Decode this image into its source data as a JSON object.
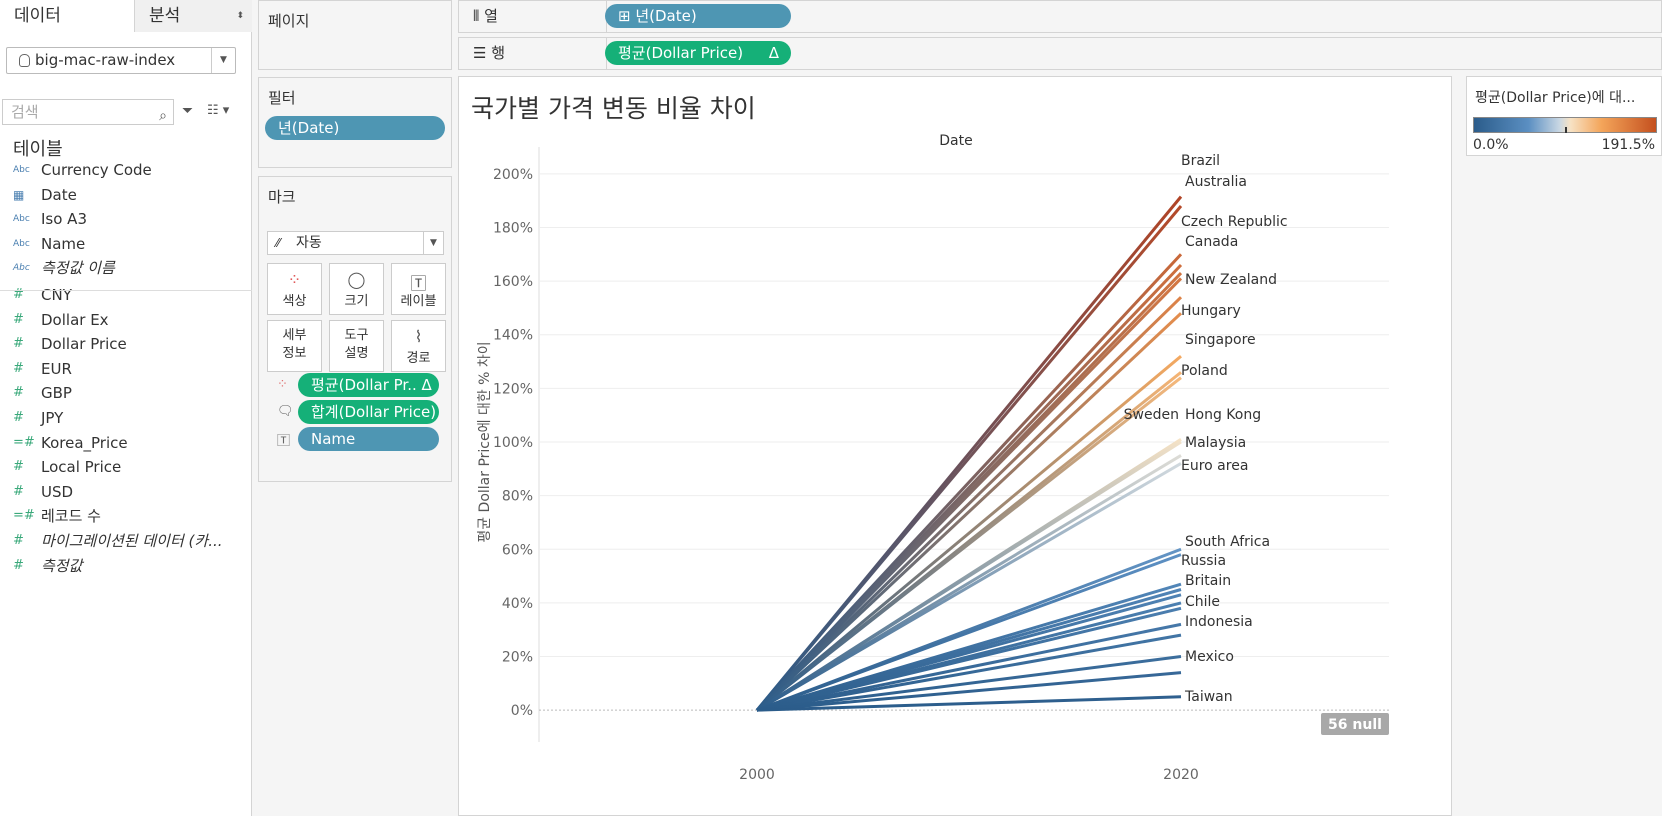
{
  "tabs": {
    "data": "데이터",
    "analysis": "분석"
  },
  "datasource": "big-mac-raw-index",
  "search_placeholder": "검색",
  "tables_heading": "테이블",
  "dimensions": [
    {
      "type": "Abc",
      "name": "Currency Code"
    },
    {
      "type": "date",
      "name": "Date"
    },
    {
      "type": "Abc",
      "name": "Iso A3"
    },
    {
      "type": "Abc",
      "name": "Name"
    },
    {
      "type": "Abc",
      "name": "측정값 이름"
    }
  ],
  "measures": [
    {
      "type": "#",
      "name": "CNY"
    },
    {
      "type": "#",
      "name": "Dollar Ex"
    },
    {
      "type": "#",
      "name": "Dollar Price"
    },
    {
      "type": "#",
      "name": "EUR"
    },
    {
      "type": "#",
      "name": "GBP"
    },
    {
      "type": "#",
      "name": "JPY"
    },
    {
      "type": "=#",
      "name": "Korea_Price"
    },
    {
      "type": "#",
      "name": "Local Price"
    },
    {
      "type": "#",
      "name": "USD"
    },
    {
      "type": "=#",
      "name": "레코드 수"
    },
    {
      "type": "#",
      "name": "마이그레이션된 데이터 (카..."
    },
    {
      "type": "#",
      "name": "측정값"
    }
  ],
  "pages": {
    "title": "페이지"
  },
  "filters": {
    "title": "필터",
    "pill": "년(Date)"
  },
  "marks": {
    "title": "마크",
    "type": "자동",
    "buttons": {
      "color": "색상",
      "size": "크기",
      "label": "레이블",
      "detail": "세부\n정보",
      "tooltip": "도구\n설명",
      "path": "경로"
    },
    "pills": [
      "평균(Dollar Pr.. Δ",
      "합계(Dollar Price)",
      "Name"
    ]
  },
  "columns": {
    "shelf": "열",
    "pill": "년(Date)"
  },
  "rows": {
    "shelf": "행",
    "pill": "평균(Dollar Price)",
    "delta": "Δ"
  },
  "viz": {
    "title": "국가별 가격 변동 비율 차이",
    "header": "Date",
    "null_badge": "56 null"
  },
  "legend": {
    "title": "평균(Dollar Price)에 대...",
    "min": "0.0%",
    "max": "191.5%"
  },
  "chart_data": {
    "type": "line",
    "title": "국가별 가격 변동 비율 차이",
    "xlabel": "Date",
    "ylabel": "평균 Dollar Price에 대한 % 차이",
    "x": [
      "2000",
      "2020"
    ],
    "yticks": [
      "0%",
      "20%",
      "40%",
      "60%",
      "80%",
      "100%",
      "120%",
      "140%",
      "160%",
      "180%",
      "200%"
    ],
    "ylim": [
      -10,
      210
    ],
    "series": [
      {
        "name": "Brazil",
        "values": [
          0,
          191.5
        ]
      },
      {
        "name": "Australia",
        "values": [
          0,
          188
        ]
      },
      {
        "name": "Czech Republic",
        "values": [
          0,
          170
        ]
      },
      {
        "name": "Canada",
        "values": [
          0,
          166
        ]
      },
      {
        "name": "",
        "values": [
          0,
          163
        ]
      },
      {
        "name": "",
        "values": [
          0,
          161
        ]
      },
      {
        "name": "New Zealand",
        "values": [
          0,
          154
        ]
      },
      {
        "name": "Hungary",
        "values": [
          0,
          148
        ]
      },
      {
        "name": "Singapore",
        "values": [
          0,
          132
        ]
      },
      {
        "name": "Poland",
        "values": [
          0,
          126
        ]
      },
      {
        "name": "",
        "values": [
          0,
          124
        ]
      },
      {
        "name": "Sweden",
        "values": [
          0,
          101
        ]
      },
      {
        "name": "Hong Kong",
        "values": [
          0,
          100
        ]
      },
      {
        "name": "Malaysia",
        "values": [
          0,
          95
        ]
      },
      {
        "name": "Euro area",
        "values": [
          0,
          92
        ]
      },
      {
        "name": "South Africa",
        "values": [
          0,
          60
        ]
      },
      {
        "name": "",
        "values": [
          0,
          58
        ]
      },
      {
        "name": "Russia",
        "values": [
          0,
          47
        ]
      },
      {
        "name": "Britain",
        "values": [
          0,
          45
        ]
      },
      {
        "name": "",
        "values": [
          0,
          43
        ]
      },
      {
        "name": "Chile",
        "values": [
          0,
          38
        ]
      },
      {
        "name": "",
        "values": [
          0,
          40
        ]
      },
      {
        "name": "Indonesia",
        "values": [
          0,
          28
        ]
      },
      {
        "name": "",
        "values": [
          0,
          32
        ]
      },
      {
        "name": "Mexico",
        "values": [
          0,
          20
        ]
      },
      {
        "name": "",
        "values": [
          0,
          14
        ]
      },
      {
        "name": "Taiwan",
        "values": [
          0,
          5
        ]
      }
    ],
    "labels": [
      "Brazil",
      "Australia",
      "Czech Republic",
      "Canada",
      "New Zealand",
      "Hungary",
      "Singapore",
      "Poland",
      "Sweden",
      "Hong Kong",
      "Malaysia",
      "Euro area",
      "South Africa",
      "Russia",
      "Britain",
      "Chile",
      "Indonesia",
      "Mexico",
      "Taiwan"
    ],
    "color_range": [
      "0.0%",
      "191.5%"
    ],
    "grid": true
  }
}
